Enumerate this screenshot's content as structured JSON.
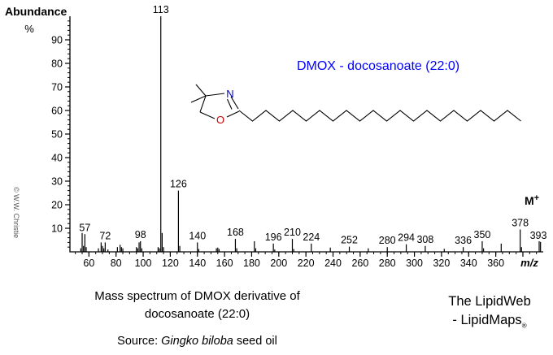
{
  "header": {
    "abundance": "Abundance",
    "percent": "%"
  },
  "copyright": "© W.W. Christie",
  "blue_title": {
    "text": "DMOX - docosanoate (22:0)",
    "color": "#0000ff"
  },
  "molecule": {
    "n_label": "N",
    "o_label": "O",
    "n_color": "#0000cc",
    "o_color": "#cc0000"
  },
  "annotations": {
    "molecular_ion": "M",
    "molecular_ion_charge": "+"
  },
  "chart_data": {
    "type": "bar",
    "title": "DMOX - docosanoate (22:0)",
    "xlabel": "m/z",
    "ylabel": "Abundance %",
    "x_range": [
      46,
      395
    ],
    "y_range": [
      0,
      100
    ],
    "x_tick_label_start": 60,
    "x_tick_label_end": 360,
    "x_tick_label_step": 20,
    "x_major_tick_end": 380,
    "x_minor_step": 5,
    "y_tick_label_start": 10,
    "y_tick_label_end": 90,
    "y_tick_label_step": 10,
    "y_minor_step": 2,
    "grid": false,
    "base_peak_mz": 113,
    "molecular_ion_mz": 393,
    "peaks": [
      {
        "mz": 54,
        "intensity": 1.5
      },
      {
        "mz": 55,
        "intensity": 8
      },
      {
        "mz": 56,
        "intensity": 2.5
      },
      {
        "mz": 57,
        "intensity": 7.5,
        "label": "57"
      },
      {
        "mz": 58,
        "intensity": 2
      },
      {
        "mz": 67,
        "intensity": 1.5
      },
      {
        "mz": 69,
        "intensity": 4
      },
      {
        "mz": 70,
        "intensity": 2.5
      },
      {
        "mz": 71,
        "intensity": 1.5
      },
      {
        "mz": 72,
        "intensity": 4,
        "label": "72"
      },
      {
        "mz": 74,
        "intensity": 1
      },
      {
        "mz": 81,
        "intensity": 2
      },
      {
        "mz": 83,
        "intensity": 3
      },
      {
        "mz": 84,
        "intensity": 2
      },
      {
        "mz": 85,
        "intensity": 1.5
      },
      {
        "mz": 95,
        "intensity": 2
      },
      {
        "mz": 96,
        "intensity": 1.5
      },
      {
        "mz": 97,
        "intensity": 4
      },
      {
        "mz": 98,
        "intensity": 4.5,
        "label": "98"
      },
      {
        "mz": 99,
        "intensity": 1.5
      },
      {
        "mz": 111,
        "intensity": 2
      },
      {
        "mz": 112,
        "intensity": 1.5
      },
      {
        "mz": 113,
        "intensity": 100,
        "label": "113"
      },
      {
        "mz": 114,
        "intensity": 8
      },
      {
        "mz": 115,
        "intensity": 2
      },
      {
        "mz": 126,
        "intensity": 26,
        "label": "126"
      },
      {
        "mz": 127,
        "intensity": 2.5
      },
      {
        "mz": 140,
        "intensity": 4,
        "label": "140"
      },
      {
        "mz": 141,
        "intensity": 1.2
      },
      {
        "mz": 154,
        "intensity": 1.5
      },
      {
        "mz": 155,
        "intensity": 1.8
      },
      {
        "mz": 156,
        "intensity": 1.2
      },
      {
        "mz": 168,
        "intensity": 5.5,
        "label": "168"
      },
      {
        "mz": 169,
        "intensity": 1.5
      },
      {
        "mz": 182,
        "intensity": 4.5
      },
      {
        "mz": 183,
        "intensity": 1.5
      },
      {
        "mz": 196,
        "intensity": 3.5,
        "label": "196"
      },
      {
        "mz": 197,
        "intensity": 1
      },
      {
        "mz": 210,
        "intensity": 5.5,
        "label": "210"
      },
      {
        "mz": 211,
        "intensity": 1.2
      },
      {
        "mz": 224,
        "intensity": 3.5,
        "label": "224"
      },
      {
        "mz": 238,
        "intensity": 1.8
      },
      {
        "mz": 252,
        "intensity": 2.2,
        "label": "252"
      },
      {
        "mz": 266,
        "intensity": 1.5
      },
      {
        "mz": 280,
        "intensity": 2,
        "label": "280"
      },
      {
        "mz": 294,
        "intensity": 3.2,
        "label": "294"
      },
      {
        "mz": 308,
        "intensity": 2.5,
        "label": "308"
      },
      {
        "mz": 322,
        "intensity": 1.3
      },
      {
        "mz": 336,
        "intensity": 2,
        "label": "336"
      },
      {
        "mz": 350,
        "intensity": 4.5,
        "label": "350"
      },
      {
        "mz": 351,
        "intensity": 1.5
      },
      {
        "mz": 364,
        "intensity": 3.5
      },
      {
        "mz": 378,
        "intensity": 9.5,
        "label": "378"
      },
      {
        "mz": 379,
        "intensity": 2
      },
      {
        "mz": 392,
        "intensity": 4.5
      },
      {
        "mz": 393,
        "intensity": 4.2,
        "label": "393"
      }
    ]
  },
  "captions": {
    "line1": "Mass spectrum of DMOX derivative of",
    "line2": "docosanoate (22:0)",
    "source_prefix": "Source: ",
    "source_italic": "Gingko biloba",
    "source_suffix": " seed oil"
  },
  "branding": {
    "line1": "The LipidWeb",
    "line2": "- LipidMaps",
    "mark": "®"
  }
}
